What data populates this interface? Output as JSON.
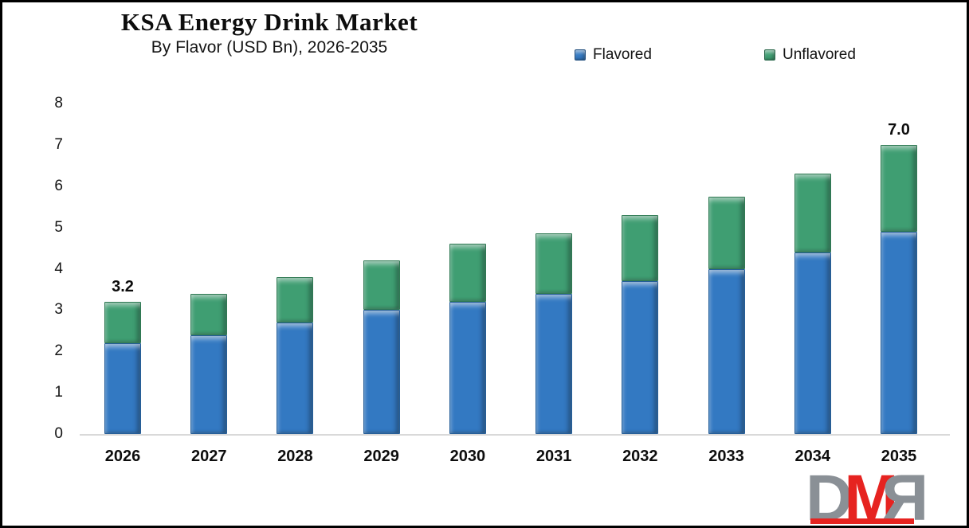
{
  "title": "KSA Energy Drink Market",
  "subtitle": "By Flavor (USD Bn), 2026-2035",
  "legend": {
    "items": [
      {
        "label": "Flavored",
        "color": "#3379c2",
        "border": "#255e99"
      },
      {
        "label": "Unflavored",
        "color": "#3f9e72",
        "border": "#2f7a53"
      }
    ]
  },
  "chart_data": {
    "type": "bar",
    "stacked": true,
    "title": "KSA Energy Drink Market",
    "subtitle": "By Flavor (USD Bn), 2026-2035",
    "value_unit": "USD Bn",
    "categories": [
      "2026",
      "2027",
      "2028",
      "2029",
      "2030",
      "2031",
      "2032",
      "2033",
      "2034",
      "2035"
    ],
    "series": [
      {
        "name": "Flavored",
        "color": "#3379c2",
        "border": "#255e99",
        "values": [
          2.2,
          2.4,
          2.7,
          3.0,
          3.2,
          3.4,
          3.7,
          4.0,
          4.4,
          4.9
        ]
      },
      {
        "name": "Unflavored",
        "color": "#3f9e72",
        "border": "#2f7a53",
        "values": [
          1.0,
          1.0,
          1.1,
          1.2,
          1.4,
          1.45,
          1.6,
          1.75,
          1.9,
          2.1
        ]
      }
    ],
    "totals": [
      3.2,
      3.4,
      3.8,
      4.2,
      4.6,
      4.85,
      5.3,
      5.75,
      6.3,
      7.0
    ],
    "data_labels": [
      {
        "category": "2026",
        "text": "3.2"
      },
      {
        "category": "2035",
        "text": "7.0"
      }
    ],
    "ylim": [
      0,
      8
    ],
    "yticks": [
      "0",
      "1",
      "2",
      "3",
      "4",
      "5",
      "6",
      "7",
      "8"
    ],
    "grid": false,
    "legend_position": "top-right",
    "axis_line_color": "#d9d9d9"
  },
  "logo": {
    "letter_d": "D",
    "letter_m": "M",
    "letter_r": "R"
  }
}
